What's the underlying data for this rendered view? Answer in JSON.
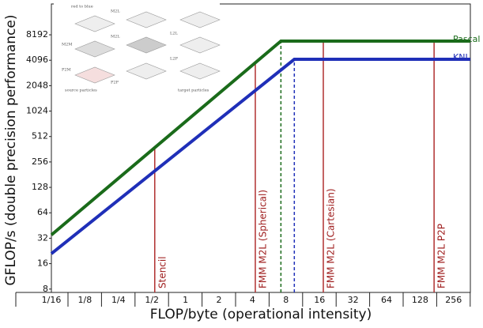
{
  "chart_data": {
    "type": "line",
    "xlabel": "FLOP/byte (operational intensity)",
    "ylabel": "GFLOP/s (double precision performance)",
    "log_x": true,
    "log_y": true,
    "xlim": [
      0.0625,
      362
    ],
    "ylim": [
      7.3,
      19000
    ],
    "xticks": [
      {
        "value": 0.0625,
        "label": "1/16"
      },
      {
        "value": 0.125,
        "label": "1/8"
      },
      {
        "value": 0.25,
        "label": "1/4"
      },
      {
        "value": 0.5,
        "label": "1/2"
      },
      1,
      2,
      4,
      8,
      16,
      32,
      64,
      128,
      256
    ],
    "yticks": [
      8,
      16,
      32,
      64,
      128,
      256,
      512,
      1024,
      2048,
      4096,
      8192
    ],
    "series": [
      {
        "name": "Pascal",
        "color": "#1a6b1a",
        "x": [
          0.0625,
          7.2,
          362
        ],
        "values": [
          35,
          6900,
          6900
        ]
      },
      {
        "name": "KNL",
        "color": "#1f2fb8",
        "x": [
          0.0625,
          9.5,
          362
        ],
        "values": [
          21,
          4200,
          4200
        ]
      }
    ],
    "annotations": [
      {
        "label": "Stencil",
        "x": 0.53
      },
      {
        "label": "FMM M2L (Spherical)",
        "x": 4.24
      },
      {
        "label": "FMM M2L (Cartesian)",
        "x": 17.3
      },
      {
        "label": "FMM M2L P2P",
        "x": 171
      }
    ]
  },
  "inset_labels": [
    "red to blue",
    "M2L",
    "M2L",
    "L2L",
    "M2M",
    "L2P",
    "P2M",
    "P2P",
    "source particles",
    "target particles"
  ]
}
